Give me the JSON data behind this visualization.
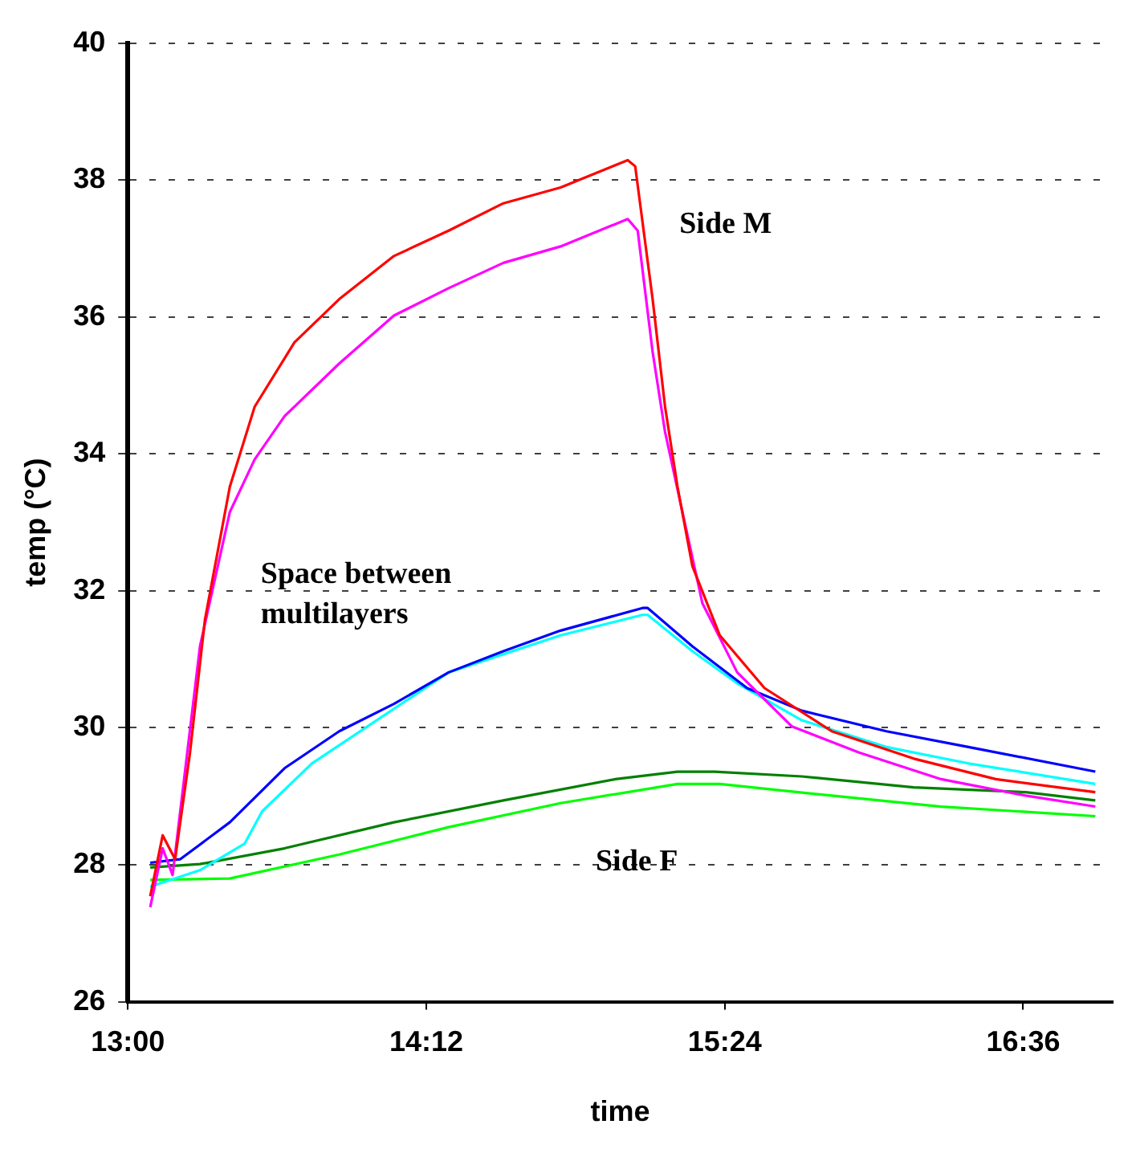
{
  "chart_data": {
    "type": "line",
    "xlabel": "time",
    "ylabel": "temp (°C)",
    "xlim": [
      13,
      16.96
    ],
    "xticks": [
      {
        "value": 13,
        "label": "13:00"
      },
      {
        "value": 14.2,
        "label": "14:12"
      },
      {
        "value": 15.4,
        "label": "15:24"
      },
      {
        "value": 16.6,
        "label": "16:36"
      }
    ],
    "ylim": [
      26,
      40
    ],
    "yticks": [
      26,
      28,
      30,
      32,
      34,
      36,
      38,
      40
    ],
    "grid": "y",
    "legend": false,
    "marker": "none",
    "line_style": "solid",
    "annotations": [
      "Side M",
      "Space between multilayers",
      "Side F"
    ],
    "series": [
      {
        "color": "#ff0000",
        "x": [
          13.09,
          13.14,
          13.19,
          13.25,
          13.31,
          13.41,
          13.51,
          13.67,
          13.85,
          14.07,
          14.29,
          14.51,
          14.74,
          15.01,
          15.04,
          15.11,
          15.16,
          15.21,
          15.27,
          15.38,
          15.56,
          15.83,
          16.16,
          16.49,
          16.89
        ],
        "values": [
          27.54,
          28.43,
          28.08,
          29.64,
          31.58,
          33.52,
          34.69,
          35.63,
          36.26,
          36.89,
          37.26,
          37.66,
          37.89,
          38.29,
          38.2,
          36.26,
          34.69,
          33.52,
          32.36,
          31.35,
          30.58,
          29.95,
          29.55,
          29.25,
          29.06
        ]
      },
      {
        "color": "#ff00ff",
        "x": [
          13.09,
          13.14,
          13.18,
          13.29,
          13.41,
          13.51,
          13.63,
          13.85,
          14.07,
          14.29,
          14.51,
          14.74,
          15.01,
          15.05,
          15.11,
          15.16,
          15.23,
          15.31,
          15.45,
          15.67,
          15.94,
          16.27,
          16.61,
          16.89
        ],
        "values": [
          27.38,
          28.24,
          27.85,
          31.19,
          33.15,
          33.92,
          34.55,
          35.32,
          36.02,
          36.42,
          36.79,
          37.03,
          37.43,
          37.26,
          35.49,
          34.32,
          33.15,
          31.82,
          30.81,
          30.02,
          29.64,
          29.25,
          29.01,
          28.85
        ]
      },
      {
        "color": "#0000ff",
        "x": [
          13.09,
          13.21,
          13.41,
          13.63,
          13.85,
          14.07,
          14.29,
          14.51,
          14.74,
          15.07,
          15.09,
          15.27,
          15.49,
          15.71,
          16.05,
          16.38,
          16.89
        ],
        "values": [
          28.03,
          28.08,
          28.62,
          29.41,
          29.95,
          30.35,
          30.81,
          31.12,
          31.42,
          31.75,
          31.75,
          31.19,
          30.58,
          30.25,
          29.95,
          29.72,
          29.36
        ]
      },
      {
        "color": "#00ffff",
        "x": [
          13.09,
          13.29,
          13.47,
          13.54,
          13.74,
          14.29,
          14.74,
          15.07,
          15.09,
          15.27,
          15.45,
          15.71,
          16.05,
          16.38,
          16.89
        ],
        "values": [
          27.68,
          27.92,
          28.31,
          28.78,
          29.48,
          30.81,
          31.35,
          31.65,
          31.65,
          31.12,
          30.65,
          30.11,
          29.72,
          29.48,
          29.18
        ]
      },
      {
        "color": "#008000",
        "x": [
          13.09,
          13.29,
          13.63,
          14.07,
          14.51,
          14.96,
          15.21,
          15.36,
          15.71,
          16.16,
          16.61,
          16.89
        ],
        "values": [
          27.96,
          28.01,
          28.24,
          28.62,
          28.94,
          29.25,
          29.36,
          29.36,
          29.29,
          29.13,
          29.06,
          28.94
        ]
      },
      {
        "color": "#00ff00",
        "x": [
          13.09,
          13.41,
          13.85,
          14.29,
          14.74,
          15.21,
          15.38,
          15.83,
          16.27,
          16.89
        ],
        "values": [
          27.78,
          27.8,
          28.15,
          28.55,
          28.9,
          29.18,
          29.18,
          29.01,
          28.85,
          28.71
        ]
      }
    ]
  }
}
